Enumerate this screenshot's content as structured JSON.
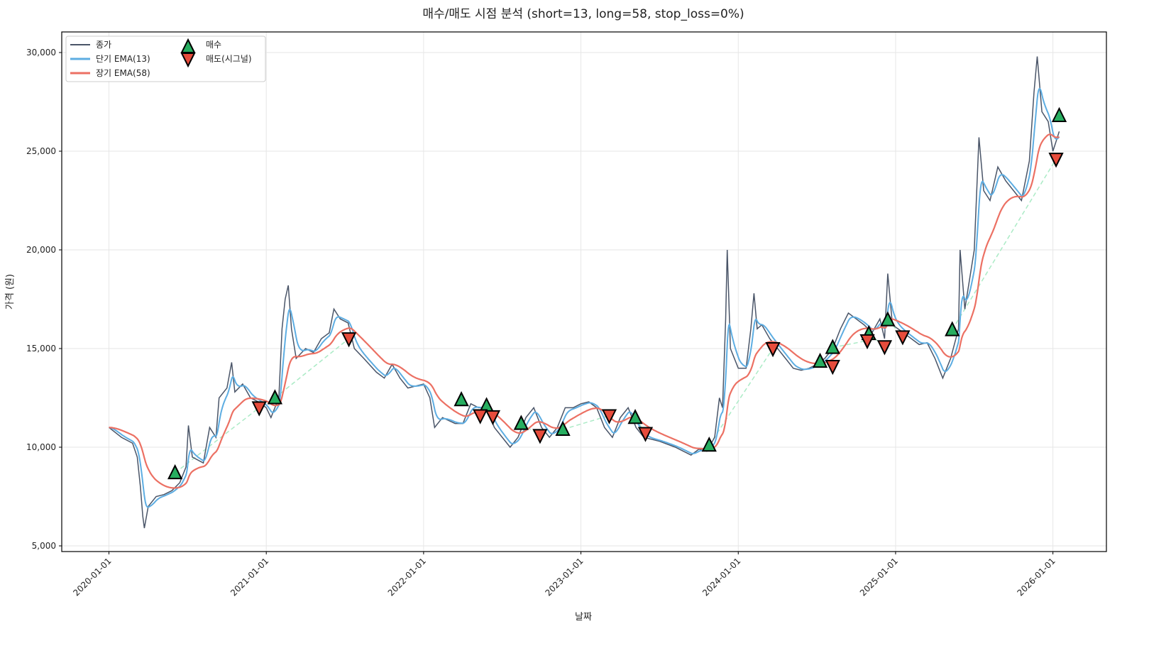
{
  "chart_data": {
    "type": "line",
    "title": "매수/매도 시점 분석 (short=13, long=58, stop_loss=0%)",
    "xlabel": "날짜",
    "ylabel": "가격 (원)",
    "xlim": [
      2019.7,
      2026.34
    ],
    "ylim": [
      4712,
      31043
    ],
    "grid": true,
    "legend_position": "top-left",
    "x_ticks": [
      {
        "value": 2020,
        "label": "2020-01-01"
      },
      {
        "value": 2021,
        "label": "2021-01-01"
      },
      {
        "value": 2022,
        "label": "2022-01-01"
      },
      {
        "value": 2023,
        "label": "2023-01-01"
      },
      {
        "value": 2024,
        "label": "2024-01-01"
      },
      {
        "value": 2025,
        "label": "2025-01-01"
      },
      {
        "value": 2026,
        "label": "2026-01-01"
      }
    ],
    "y_ticks": [
      {
        "value": 5000,
        "label": "5,000"
      },
      {
        "value": 10000,
        "label": "10,000"
      },
      {
        "value": 15000,
        "label": "15,000"
      },
      {
        "value": 20000,
        "label": "20,000"
      },
      {
        "value": 25000,
        "label": "25,000"
      },
      {
        "value": 30000,
        "label": "30,000"
      }
    ],
    "legend": {
      "close": "종가",
      "short_ema": "단기 EMA(13)",
      "long_ema": "장기 EMA(58)",
      "buy": "매수",
      "sell": "매도(시그널)"
    },
    "colors": {
      "close": "#4a5568",
      "short_ema": "#5dade2",
      "long_ema": "#ec7063",
      "buy": "#27ae60",
      "sell": "#e74c3c",
      "trade": "#abebc6"
    },
    "ema_spans": {
      "short": 13,
      "long": 58
    },
    "close_series": [
      [
        2020.0,
        11000
      ],
      [
        2020.08,
        10500
      ],
      [
        2020.15,
        10200
      ],
      [
        2020.18,
        9500
      ],
      [
        2020.2,
        8000
      ],
      [
        2020.215,
        6500
      ],
      [
        2020.225,
        5900
      ],
      [
        2020.25,
        7000
      ],
      [
        2020.3,
        7500
      ],
      [
        2020.35,
        7600
      ],
      [
        2020.4,
        7800
      ],
      [
        2020.45,
        8200
      ],
      [
        2020.49,
        9000
      ],
      [
        2020.505,
        11100
      ],
      [
        2020.53,
        9500
      ],
      [
        2020.6,
        9200
      ],
      [
        2020.64,
        11000
      ],
      [
        2020.68,
        10500
      ],
      [
        2020.7,
        12500
      ],
      [
        2020.75,
        13000
      ],
      [
        2020.78,
        14300
      ],
      [
        2020.8,
        12800
      ],
      [
        2020.85,
        13200
      ],
      [
        2020.9,
        12500
      ],
      [
        2020.95,
        12300
      ],
      [
        2021.0,
        12000
      ],
      [
        2021.03,
        11500
      ],
      [
        2021.08,
        12500
      ],
      [
        2021.1,
        16000
      ],
      [
        2021.12,
        17500
      ],
      [
        2021.14,
        18200
      ],
      [
        2021.16,
        16000
      ],
      [
        2021.19,
        14500
      ],
      [
        2021.25,
        15000
      ],
      [
        2021.3,
        14800
      ],
      [
        2021.35,
        15500
      ],
      [
        2021.4,
        15800
      ],
      [
        2021.43,
        17000
      ],
      [
        2021.47,
        16500
      ],
      [
        2021.52,
        16300
      ],
      [
        2021.56,
        15000
      ],
      [
        2021.62,
        14500
      ],
      [
        2021.7,
        13800
      ],
      [
        2021.75,
        13500
      ],
      [
        2021.8,
        14200
      ],
      [
        2021.85,
        13500
      ],
      [
        2021.9,
        13000
      ],
      [
        2022.0,
        13200
      ],
      [
        2022.04,
        12500
      ],
      [
        2022.07,
        11000
      ],
      [
        2022.12,
        11500
      ],
      [
        2022.2,
        11200
      ],
      [
        2022.25,
        11200
      ],
      [
        2022.3,
        12200
      ],
      [
        2022.35,
        12000
      ],
      [
        2022.4,
        12000
      ],
      [
        2022.45,
        11000
      ],
      [
        2022.5,
        10500
      ],
      [
        2022.55,
        10000
      ],
      [
        2022.6,
        10500
      ],
      [
        2022.65,
        11500
      ],
      [
        2022.7,
        12000
      ],
      [
        2022.75,
        11000
      ],
      [
        2022.8,
        10500
      ],
      [
        2022.85,
        11000
      ],
      [
        2022.9,
        12000
      ],
      [
        2022.95,
        12000
      ],
      [
        2023.0,
        12200
      ],
      [
        2023.05,
        12300
      ],
      [
        2023.1,
        12000
      ],
      [
        2023.15,
        11000
      ],
      [
        2023.2,
        10500
      ],
      [
        2023.25,
        11500
      ],
      [
        2023.3,
        12000
      ],
      [
        2023.35,
        11000
      ],
      [
        2023.4,
        10500
      ],
      [
        2023.5,
        10300
      ],
      [
        2023.6,
        10000
      ],
      [
        2023.7,
        9600
      ],
      [
        2023.75,
        9900
      ],
      [
        2023.8,
        9800
      ],
      [
        2023.85,
        10500
      ],
      [
        2023.88,
        12500
      ],
      [
        2023.9,
        12000
      ],
      [
        2023.92,
        16500
      ],
      [
        2023.93,
        20000
      ],
      [
        2023.95,
        15000
      ],
      [
        2024.0,
        14000
      ],
      [
        2024.05,
        14000
      ],
      [
        2024.08,
        16000
      ],
      [
        2024.1,
        17800
      ],
      [
        2024.12,
        16000
      ],
      [
        2024.15,
        16200
      ],
      [
        2024.2,
        15500
      ],
      [
        2024.25,
        15000
      ],
      [
        2024.3,
        14500
      ],
      [
        2024.35,
        14000
      ],
      [
        2024.4,
        13900
      ],
      [
        2024.45,
        14000
      ],
      [
        2024.5,
        14200
      ],
      [
        2024.55,
        14500
      ],
      [
        2024.6,
        15000
      ],
      [
        2024.65,
        16000
      ],
      [
        2024.7,
        16800
      ],
      [
        2024.75,
        16500
      ],
      [
        2024.8,
        16200
      ],
      [
        2024.85,
        15800
      ],
      [
        2024.9,
        16500
      ],
      [
        2024.93,
        15500
      ],
      [
        2024.95,
        18800
      ],
      [
        2024.98,
        16200
      ],
      [
        2025.05,
        15800
      ],
      [
        2025.1,
        15500
      ],
      [
        2025.15,
        15200
      ],
      [
        2025.2,
        15300
      ],
      [
        2025.25,
        14500
      ],
      [
        2025.3,
        13500
      ],
      [
        2025.35,
        14500
      ],
      [
        2025.4,
        16000
      ],
      [
        2025.41,
        20000
      ],
      [
        2025.44,
        17000
      ],
      [
        2025.5,
        20000
      ],
      [
        2025.53,
        25700
      ],
      [
        2025.56,
        23000
      ],
      [
        2025.6,
        22500
      ],
      [
        2025.65,
        24200
      ],
      [
        2025.7,
        23500
      ],
      [
        2025.75,
        23000
      ],
      [
        2025.8,
        22500
      ],
      [
        2025.85,
        24500
      ],
      [
        2025.88,
        28000
      ],
      [
        2025.9,
        29800
      ],
      [
        2025.93,
        27000
      ],
      [
        2025.97,
        26500
      ],
      [
        2026.0,
        25000
      ],
      [
        2026.02,
        25500
      ],
      [
        2026.04,
        26000
      ]
    ],
    "buy_signals": [
      [
        2020.42,
        8700
      ],
      [
        2021.055,
        12500
      ],
      [
        2022.24,
        12400
      ],
      [
        2022.4,
        12100
      ],
      [
        2022.62,
        11200
      ],
      [
        2022.885,
        10900
      ],
      [
        2023.345,
        11500
      ],
      [
        2023.815,
        10100
      ],
      [
        2024.52,
        14350
      ],
      [
        2024.6,
        15050
      ],
      [
        2024.83,
        15750
      ],
      [
        2024.95,
        16450
      ],
      [
        2025.36,
        15950
      ],
      [
        2026.04,
        26800
      ]
    ],
    "sell_signals": [
      [
        2020.955,
        12000
      ],
      [
        2021.525,
        15500
      ],
      [
        2022.36,
        11600
      ],
      [
        2022.44,
        11550
      ],
      [
        2022.74,
        10600
      ],
      [
        2023.18,
        11600
      ],
      [
        2023.41,
        10700
      ],
      [
        2024.22,
        15000
      ],
      [
        2024.6,
        14100
      ],
      [
        2024.82,
        15400
      ],
      [
        2024.93,
        15100
      ],
      [
        2025.045,
        15600
      ],
      [
        2026.02,
        24600
      ]
    ]
  }
}
